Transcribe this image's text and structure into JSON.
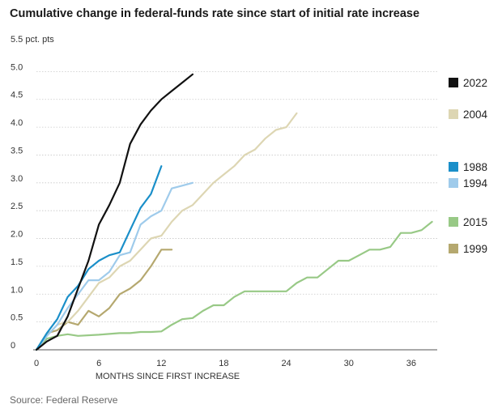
{
  "title": "Cumulative change in federal-funds rate since start of initial rate increase",
  "source": "Source: Federal Reserve",
  "chart_data": {
    "type": "line",
    "title": "Cumulative change in federal-funds rate since start of initial rate increase",
    "xlabel": "MONTHS SINCE FIRST INCREASE",
    "ylabel": "pct. pts",
    "xlim": [
      0,
      38.5
    ],
    "ylim": [
      0,
      5.5
    ],
    "x_ticks": [
      0,
      6,
      12,
      18,
      24,
      30,
      36
    ],
    "y_ticks": [
      0,
      0.5,
      1.0,
      1.5,
      2.0,
      2.5,
      3.0,
      3.5,
      4.0,
      4.5,
      5.0,
      5.5
    ],
    "y_tick_labels": [
      "0",
      "0.5",
      "1.0",
      "1.5",
      "2.0",
      "2.5",
      "3.0",
      "3.5",
      "4.0",
      "4.5",
      "5.0",
      "5.5 pct. pts"
    ],
    "grid": "horizontal",
    "legend_position": "right",
    "series": [
      {
        "name": "2022",
        "color": "#111111",
        "points": [
          [
            0,
            0
          ],
          [
            1,
            0.15
          ],
          [
            2,
            0.25
          ],
          [
            3,
            0.6
          ],
          [
            4,
            1.1
          ],
          [
            5,
            1.6
          ],
          [
            6,
            2.25
          ],
          [
            7,
            2.6
          ],
          [
            8,
            3.0
          ],
          [
            9,
            3.7
          ],
          [
            10,
            4.05
          ],
          [
            11,
            4.3
          ],
          [
            12,
            4.5
          ],
          [
            13,
            4.65
          ],
          [
            14,
            4.8
          ],
          [
            15,
            4.95
          ]
        ]
      },
      {
        "name": "2004",
        "color": "#ddd6b3",
        "points": [
          [
            0,
            0
          ],
          [
            1,
            0.25
          ],
          [
            2,
            0.45
          ],
          [
            3,
            0.5
          ],
          [
            4,
            0.7
          ],
          [
            5,
            0.95
          ],
          [
            6,
            1.2
          ],
          [
            7,
            1.3
          ],
          [
            8,
            1.5
          ],
          [
            9,
            1.6
          ],
          [
            10,
            1.8
          ],
          [
            11,
            2.0
          ],
          [
            12,
            2.05
          ],
          [
            13,
            2.3
          ],
          [
            14,
            2.5
          ],
          [
            15,
            2.6
          ],
          [
            16,
            2.8
          ],
          [
            17,
            3.0
          ],
          [
            18,
            3.15
          ],
          [
            19,
            3.3
          ],
          [
            20,
            3.5
          ],
          [
            21,
            3.6
          ],
          [
            22,
            3.8
          ],
          [
            23,
            3.95
          ],
          [
            24,
            4.0
          ],
          [
            25,
            4.25
          ]
        ]
      },
      {
        "name": "1988",
        "color": "#1a8fc9",
        "points": [
          [
            0,
            0
          ],
          [
            1,
            0.3
          ],
          [
            2,
            0.55
          ],
          [
            3,
            0.95
          ],
          [
            4,
            1.15
          ],
          [
            5,
            1.45
          ],
          [
            6,
            1.6
          ],
          [
            7,
            1.7
          ],
          [
            8,
            1.75
          ],
          [
            9,
            2.15
          ],
          [
            10,
            2.55
          ],
          [
            11,
            2.8
          ],
          [
            12,
            3.3
          ]
        ]
      },
      {
        "name": "1994",
        "color": "#9fcbeb",
        "points": [
          [
            0,
            0
          ],
          [
            1,
            0.25
          ],
          [
            2,
            0.45
          ],
          [
            3,
            0.75
          ],
          [
            4,
            1.0
          ],
          [
            5,
            1.25
          ],
          [
            6,
            1.25
          ],
          [
            7,
            1.4
          ],
          [
            8,
            1.7
          ],
          [
            9,
            1.75
          ],
          [
            10,
            2.25
          ],
          [
            11,
            2.4
          ],
          [
            12,
            2.5
          ],
          [
            13,
            2.9
          ],
          [
            14,
            2.95
          ],
          [
            15,
            3.0
          ]
        ]
      },
      {
        "name": "2015",
        "color": "#98c986",
        "points": [
          [
            0,
            0
          ],
          [
            1,
            0.2
          ],
          [
            2,
            0.25
          ],
          [
            3,
            0.28
          ],
          [
            4,
            0.25
          ],
          [
            6,
            0.27
          ],
          [
            8,
            0.3
          ],
          [
            9,
            0.3
          ],
          [
            10,
            0.32
          ],
          [
            11,
            0.32
          ],
          [
            12,
            0.33
          ],
          [
            13,
            0.45
          ],
          [
            14,
            0.55
          ],
          [
            15,
            0.57
          ],
          [
            16,
            0.7
          ],
          [
            17,
            0.8
          ],
          [
            18,
            0.8
          ],
          [
            19,
            0.95
          ],
          [
            20,
            1.05
          ],
          [
            21,
            1.05
          ],
          [
            22,
            1.05
          ],
          [
            23,
            1.05
          ],
          [
            24,
            1.05
          ],
          [
            25,
            1.2
          ],
          [
            26,
            1.3
          ],
          [
            27,
            1.3
          ],
          [
            28,
            1.45
          ],
          [
            29,
            1.6
          ],
          [
            30,
            1.6
          ],
          [
            31,
            1.7
          ],
          [
            32,
            1.8
          ],
          [
            33,
            1.8
          ],
          [
            34,
            1.85
          ],
          [
            35,
            2.1
          ],
          [
            36,
            2.1
          ],
          [
            37,
            2.15
          ],
          [
            38,
            2.3
          ]
        ]
      },
      {
        "name": "1999",
        "color": "#b5a86f",
        "points": [
          [
            0,
            0
          ],
          [
            1,
            0.3
          ],
          [
            2,
            0.35
          ],
          [
            3,
            0.5
          ],
          [
            4,
            0.45
          ],
          [
            5,
            0.7
          ],
          [
            6,
            0.6
          ],
          [
            7,
            0.75
          ],
          [
            8,
            1.0
          ],
          [
            9,
            1.1
          ],
          [
            10,
            1.25
          ],
          [
            11,
            1.5
          ],
          [
            12,
            1.8
          ],
          [
            13,
            1.8
          ]
        ]
      }
    ]
  }
}
